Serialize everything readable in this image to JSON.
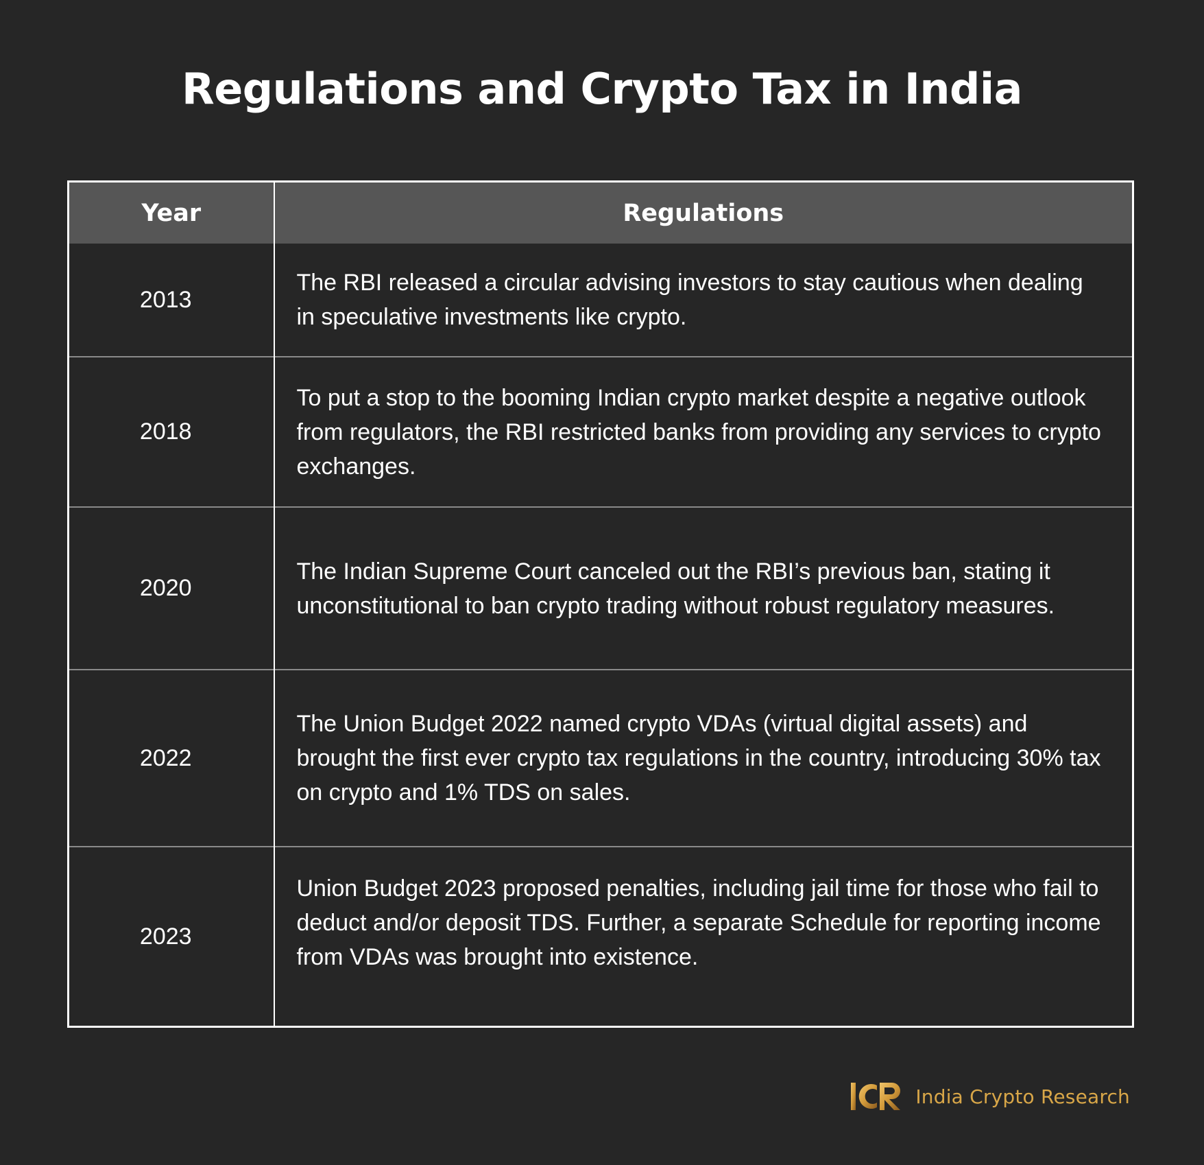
{
  "title": "Regulations and Crypto Tax in India",
  "table": {
    "headers": {
      "year": "Year",
      "regulations": "Regulations"
    },
    "rows": [
      {
        "year": "2013",
        "text": "The RBI released a circular advising investors to stay cautious when dealing in speculative investments like crypto."
      },
      {
        "year": "2018",
        "text": "To put a stop to the booming Indian crypto market despite a negative outlook from regulators, the RBI restricted banks from providing any services to crypto exchanges."
      },
      {
        "year": "2020",
        "text": "The Indian Supreme Court canceled out the RBI’s previous ban, stating it unconstitutional to ban crypto trading without robust regulatory measures."
      },
      {
        "year": "2022",
        "text": "The Union Budget 2022 named crypto VDAs (virtual digital assets) and brought the first ever crypto tax regulations in the country, introducing 30% tax on crypto and 1% TDS on sales."
      },
      {
        "year": "2023",
        "text": "Union Budget 2023 proposed penalties, including jail time for those who fail to deduct and/or deposit TDS. Further, a separate Schedule for reporting income from VDAs was brought into existence."
      }
    ]
  },
  "brand": {
    "logo_text": "ICR",
    "name": "India Crypto Research",
    "color": "#d8a648"
  },
  "colors": {
    "background": "#262626",
    "header_background": "#565656",
    "text": "#ffffff"
  }
}
